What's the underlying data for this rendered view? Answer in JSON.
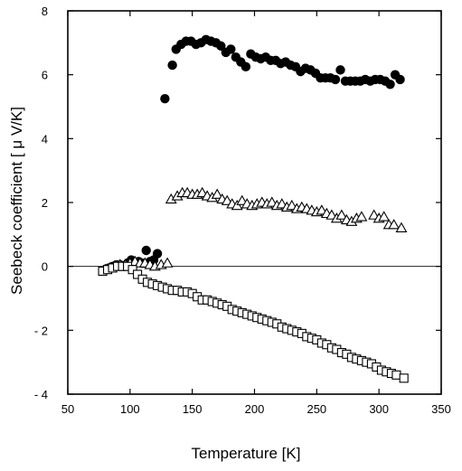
{
  "chart_data": {
    "type": "scatter",
    "xlabel": "Temperature [K]",
    "ylabel": "Seebeck coefficient [ μ V/K]",
    "xlim": [
      50,
      350
    ],
    "ylim": [
      -4,
      8
    ],
    "x_ticks": [
      50,
      100,
      150,
      200,
      250,
      300,
      350
    ],
    "y_ticks": [
      8,
      6,
      4,
      2,
      0,
      -2,
      -4
    ],
    "x_tick_labels": [
      "50",
      "100",
      "150",
      "200",
      "250",
      "300",
      "350"
    ],
    "y_tick_labels": [
      "8",
      "6",
      "4",
      "2",
      "0",
      "- 2",
      "- 4"
    ],
    "zero_line": 0,
    "grid": false,
    "series": [
      {
        "marker": "filled-circle",
        "points": [
          [
            80,
            -0.1
          ],
          [
            83,
            -0.05
          ],
          [
            86,
            0.0
          ],
          [
            89,
            0.05
          ],
          [
            92,
            0.05
          ],
          [
            95,
            0.0
          ],
          [
            98,
            0.1
          ],
          [
            101,
            0.2
          ],
          [
            104,
            0.1
          ],
          [
            107,
            0.15
          ],
          [
            110,
            0.1
          ],
          [
            113,
            0.5
          ],
          [
            116,
            0.15
          ],
          [
            119,
            0.2
          ],
          [
            122,
            0.4
          ],
          [
            128,
            5.25
          ],
          [
            134,
            6.3
          ],
          [
            137,
            6.8
          ],
          [
            141,
            6.95
          ],
          [
            145,
            7.05
          ],
          [
            149,
            7.05
          ],
          [
            153,
            6.95
          ],
          [
            157,
            7.0
          ],
          [
            161,
            7.1
          ],
          [
            165,
            7.05
          ],
          [
            169,
            7.0
          ],
          [
            173,
            6.9
          ],
          [
            177,
            6.7
          ],
          [
            181,
            6.8
          ],
          [
            185,
            6.55
          ],
          [
            189,
            6.4
          ],
          [
            193,
            6.25
          ],
          [
            197,
            6.65
          ],
          [
            201,
            6.55
          ],
          [
            205,
            6.5
          ],
          [
            209,
            6.55
          ],
          [
            213,
            6.45
          ],
          [
            217,
            6.45
          ],
          [
            221,
            6.35
          ],
          [
            225,
            6.4
          ],
          [
            229,
            6.3
          ],
          [
            233,
            6.25
          ],
          [
            237,
            6.1
          ],
          [
            241,
            6.2
          ],
          [
            245,
            6.15
          ],
          [
            249,
            6.05
          ],
          [
            253,
            5.9
          ],
          [
            257,
            5.9
          ],
          [
            261,
            5.9
          ],
          [
            265,
            5.85
          ],
          [
            269,
            6.15
          ],
          [
            273,
            5.8
          ],
          [
            277,
            5.8
          ],
          [
            281,
            5.8
          ],
          [
            285,
            5.8
          ],
          [
            289,
            5.85
          ],
          [
            293,
            5.8
          ],
          [
            297,
            5.85
          ],
          [
            301,
            5.85
          ],
          [
            305,
            5.8
          ],
          [
            309,
            5.7
          ],
          [
            313,
            6.0
          ],
          [
            317,
            5.85
          ]
        ]
      },
      {
        "marker": "open-triangle",
        "points": [
          [
            80,
            -0.1
          ],
          [
            84,
            -0.05
          ],
          [
            88,
            0.0
          ],
          [
            92,
            0.05
          ],
          [
            96,
            0.05
          ],
          [
            100,
            0.1
          ],
          [
            104,
            0.15
          ],
          [
            108,
            0.1
          ],
          [
            112,
            0.1
          ],
          [
            116,
            0.05
          ],
          [
            120,
            0.0
          ],
          [
            125,
            0.05
          ],
          [
            130,
            0.1
          ],
          [
            133,
            2.1
          ],
          [
            138,
            2.2
          ],
          [
            142,
            2.3
          ],
          [
            146,
            2.3
          ],
          [
            150,
            2.25
          ],
          [
            154,
            2.25
          ],
          [
            158,
            2.3
          ],
          [
            162,
            2.2
          ],
          [
            166,
            2.15
          ],
          [
            170,
            2.25
          ],
          [
            174,
            2.1
          ],
          [
            178,
            2.05
          ],
          [
            182,
            1.95
          ],
          [
            186,
            1.9
          ],
          [
            190,
            2.05
          ],
          [
            194,
            1.95
          ],
          [
            198,
            1.9
          ],
          [
            202,
            1.95
          ],
          [
            206,
            2.0
          ],
          [
            210,
            1.95
          ],
          [
            214,
            2.0
          ],
          [
            218,
            1.9
          ],
          [
            222,
            1.95
          ],
          [
            226,
            1.85
          ],
          [
            230,
            1.9
          ],
          [
            234,
            1.8
          ],
          [
            238,
            1.85
          ],
          [
            242,
            1.8
          ],
          [
            246,
            1.75
          ],
          [
            250,
            1.7
          ],
          [
            254,
            1.75
          ],
          [
            258,
            1.65
          ],
          [
            262,
            1.6
          ],
          [
            266,
            1.5
          ],
          [
            270,
            1.6
          ],
          [
            274,
            1.45
          ],
          [
            278,
            1.4
          ],
          [
            282,
            1.5
          ],
          [
            286,
            1.55
          ],
          [
            296,
            1.6
          ],
          [
            300,
            1.5
          ],
          [
            304,
            1.55
          ],
          [
            308,
            1.3
          ],
          [
            312,
            1.3
          ],
          [
            318,
            1.2
          ]
        ]
      },
      {
        "marker": "open-square",
        "points": [
          [
            78,
            -0.15
          ],
          [
            82,
            -0.1
          ],
          [
            86,
            -0.05
          ],
          [
            90,
            0.0
          ],
          [
            94,
            0.0
          ],
          [
            98,
            0.0
          ],
          [
            102,
            -0.1
          ],
          [
            106,
            -0.25
          ],
          [
            110,
            -0.4
          ],
          [
            114,
            -0.5
          ],
          [
            118,
            -0.55
          ],
          [
            122,
            -0.6
          ],
          [
            126,
            -0.65
          ],
          [
            130,
            -0.7
          ],
          [
            134,
            -0.75
          ],
          [
            138,
            -0.75
          ],
          [
            142,
            -0.8
          ],
          [
            146,
            -0.8
          ],
          [
            150,
            -0.85
          ],
          [
            154,
            -0.95
          ],
          [
            158,
            -1.05
          ],
          [
            162,
            -1.05
          ],
          [
            166,
            -1.1
          ],
          [
            170,
            -1.15
          ],
          [
            174,
            -1.2
          ],
          [
            178,
            -1.25
          ],
          [
            182,
            -1.35
          ],
          [
            186,
            -1.4
          ],
          [
            190,
            -1.45
          ],
          [
            194,
            -1.5
          ],
          [
            198,
            -1.55
          ],
          [
            202,
            -1.6
          ],
          [
            206,
            -1.65
          ],
          [
            210,
            -1.7
          ],
          [
            214,
            -1.75
          ],
          [
            218,
            -1.8
          ],
          [
            222,
            -1.9
          ],
          [
            226,
            -1.95
          ],
          [
            230,
            -2.0
          ],
          [
            234,
            -2.05
          ],
          [
            238,
            -2.1
          ],
          [
            242,
            -2.2
          ],
          [
            246,
            -2.25
          ],
          [
            250,
            -2.3
          ],
          [
            254,
            -2.4
          ],
          [
            258,
            -2.45
          ],
          [
            262,
            -2.55
          ],
          [
            266,
            -2.6
          ],
          [
            270,
            -2.7
          ],
          [
            274,
            -2.75
          ],
          [
            278,
            -2.85
          ],
          [
            282,
            -2.9
          ],
          [
            286,
            -2.95
          ],
          [
            290,
            -3.0
          ],
          [
            294,
            -3.05
          ],
          [
            298,
            -3.15
          ],
          [
            302,
            -3.25
          ],
          [
            306,
            -3.3
          ],
          [
            310,
            -3.35
          ],
          [
            314,
            -3.4
          ],
          [
            320,
            -3.5
          ]
        ]
      }
    ]
  }
}
